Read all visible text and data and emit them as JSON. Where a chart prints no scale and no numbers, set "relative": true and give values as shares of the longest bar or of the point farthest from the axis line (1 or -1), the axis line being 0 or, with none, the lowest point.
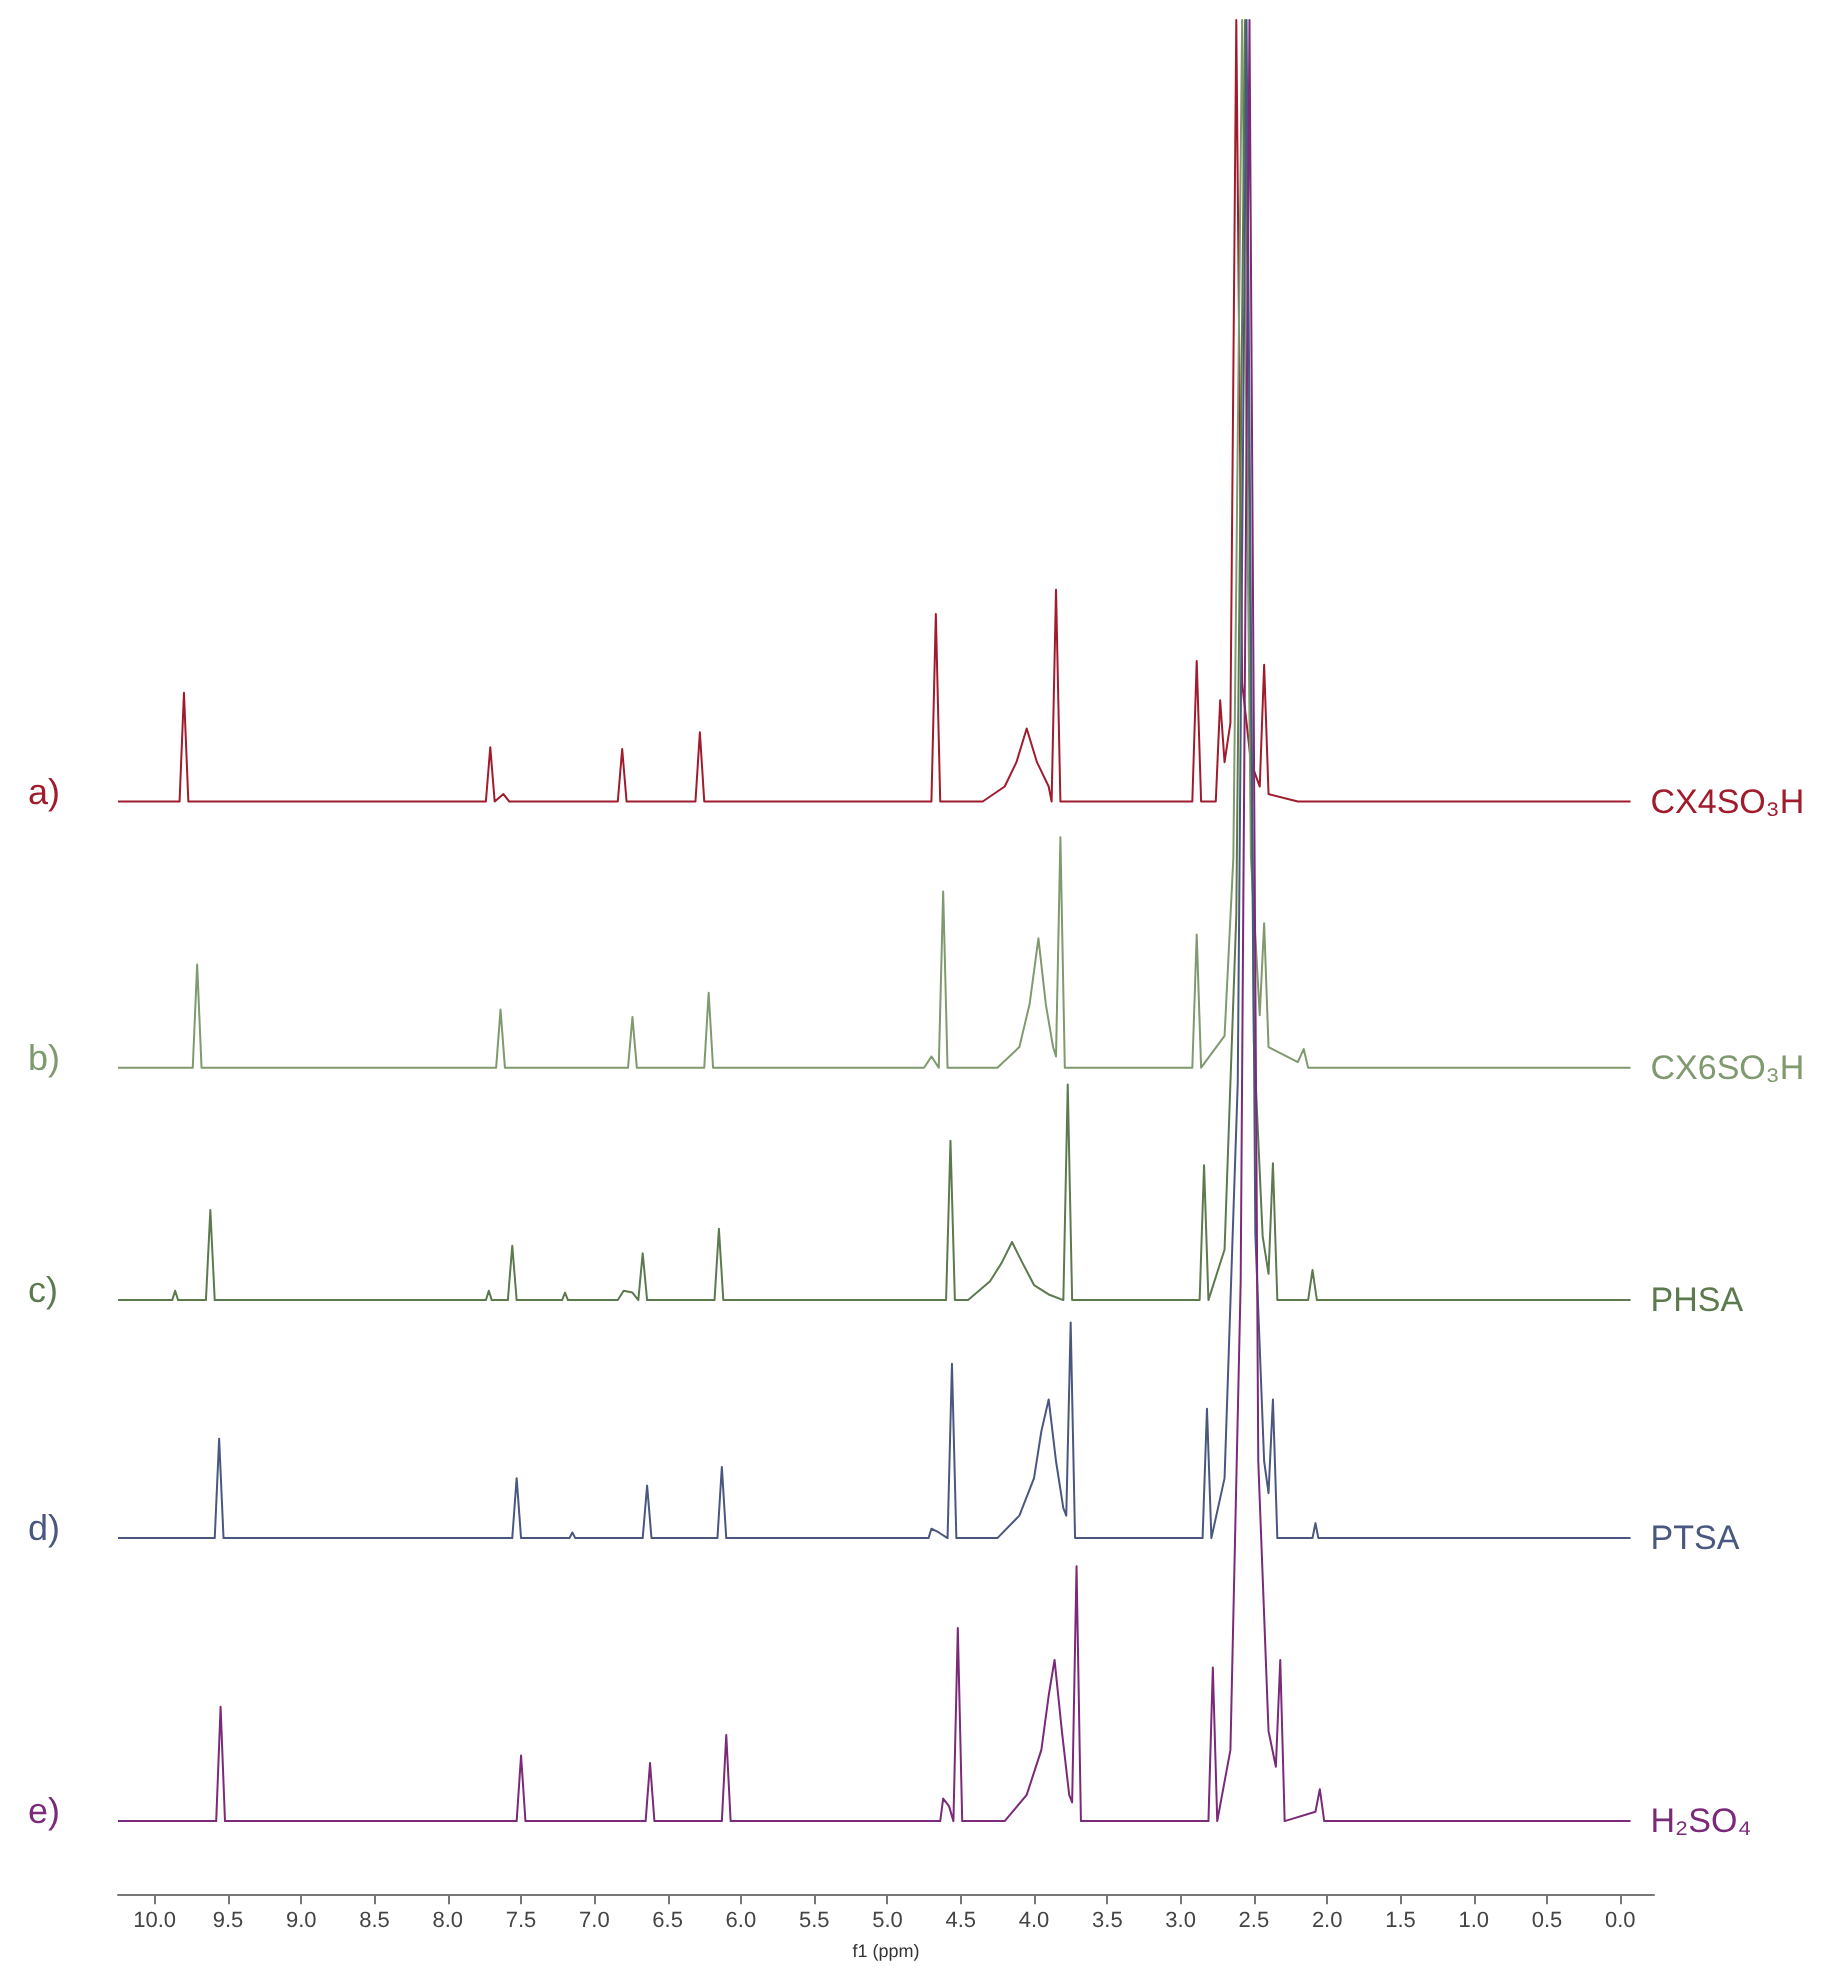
{
  "chart_data": {
    "type": "line",
    "relative": true,
    "tick_labels": "x",
    "xlabel": "f1 (ppm)",
    "xlim": [
      10.25,
      -0.23
    ],
    "xticks": [
      {
        "value": 10,
        "label": "10.0"
      },
      9.5,
      {
        "value": 9,
        "label": "9.0"
      },
      8.5,
      {
        "value": 8,
        "label": "8.0"
      },
      7.5,
      {
        "value": 7,
        "label": "7.0"
      },
      6.5,
      {
        "value": 6,
        "label": "6.0"
      },
      5.5,
      {
        "value": 5,
        "label": "5.0"
      },
      4.5,
      {
        "value": 4,
        "label": "4.0"
      },
      3.5,
      {
        "value": 3,
        "label": "3.0"
      },
      2.5,
      {
        "value": 2,
        "label": "2.0"
      },
      1.5,
      {
        "value": 1,
        "label": "1.0"
      },
      0.5,
      {
        "value": 0,
        "label": "0.0"
      }
    ],
    "annotations": [
      "a)",
      "b)",
      "c)",
      "d)",
      "e)"
    ],
    "series": [
      {
        "name": "CX4SO₃H",
        "color": "#a01c2c",
        "x": [
          10.25,
          9.83,
          9.8,
          9.77,
          7.74,
          7.71,
          7.68,
          7.62,
          7.58,
          6.84,
          6.81,
          6.78,
          6.31,
          6.28,
          6.25,
          4.7,
          4.67,
          4.64,
          4.35,
          4.2,
          4.12,
          4.05,
          3.98,
          3.9,
          3.88,
          3.85,
          3.82,
          3.0,
          2.92,
          2.89,
          2.86,
          2.76,
          2.73,
          2.7,
          2.66,
          2.62,
          2.58,
          2.52,
          2.46,
          2.43,
          2.4,
          2.2,
          -0.07
        ],
        "values": [
          0.583,
          0.583,
          0.641,
          0.583,
          0.583,
          0.612,
          0.583,
          0.587,
          0.583,
          0.583,
          0.611,
          0.583,
          0.583,
          0.62,
          0.583,
          0.583,
          0.683,
          0.583,
          0.583,
          0.591,
          0.604,
          0.622,
          0.604,
          0.591,
          0.583,
          0.696,
          0.583,
          0.583,
          0.583,
          0.658,
          0.583,
          0.583,
          0.637,
          0.604,
          0.625,
          1,
          0.646,
          0.604,
          0.591,
          0.656,
          0.587,
          0.583,
          0.583
        ]
      },
      {
        "name": "CX6SO₃H",
        "color": "#7f9a6e",
        "x": [
          10.25,
          9.74,
          9.71,
          9.68,
          7.67,
          7.64,
          7.61,
          6.77,
          6.74,
          6.71,
          6.25,
          6.22,
          6.19,
          4.75,
          4.7,
          4.65,
          4.62,
          4.59,
          4.25,
          4.1,
          4.03,
          3.97,
          3.92,
          3.87,
          3.85,
          3.82,
          3.79,
          2.95,
          2.92,
          2.89,
          2.86,
          2.7,
          2.64,
          2.58,
          2.52,
          2.46,
          2.43,
          2.4,
          2.2,
          2.16,
          2.13,
          -0.07
        ],
        "values": [
          0.441,
          0.441,
          0.496,
          0.441,
          0.441,
          0.472,
          0.441,
          0.441,
          0.468,
          0.441,
          0.441,
          0.481,
          0.441,
          0.441,
          0.447,
          0.441,
          0.535,
          0.441,
          0.441,
          0.452,
          0.475,
          0.51,
          0.475,
          0.452,
          0.447,
          0.564,
          0.441,
          0.441,
          0.441,
          0.512,
          0.441,
          0.458,
          0.553,
          1,
          0.553,
          0.469,
          0.518,
          0.452,
          0.444,
          0.451,
          0.441,
          0.441
        ]
      },
      {
        "name": "PHSA",
        "color": "#5c7a4e",
        "x": [
          10.25,
          9.88,
          9.86,
          9.84,
          9.65,
          9.62,
          9.59,
          7.74,
          7.72,
          7.7,
          7.59,
          7.56,
          7.53,
          7.22,
          7.2,
          7.18,
          6.84,
          6.8,
          6.74,
          6.7,
          6.67,
          6.64,
          6.18,
          6.15,
          6.12,
          4.6,
          4.57,
          4.54,
          4.45,
          4.3,
          4.22,
          4.15,
          4.08,
          4.0,
          3.9,
          3.8,
          3.77,
          3.74,
          2.9,
          2.87,
          2.84,
          2.81,
          2.7,
          2.62,
          2.56,
          2.5,
          2.44,
          2.4,
          2.37,
          2.34,
          2.13,
          2.1,
          2.07,
          -0.07
        ],
        "values": [
          0.317,
          0.317,
          0.322,
          0.317,
          0.317,
          0.365,
          0.317,
          0.317,
          0.322,
          0.317,
          0.317,
          0.346,
          0.317,
          0.317,
          0.321,
          0.317,
          0.317,
          0.322,
          0.321,
          0.317,
          0.342,
          0.317,
          0.317,
          0.355,
          0.317,
          0.317,
          0.402,
          0.317,
          0.317,
          0.327,
          0.337,
          0.348,
          0.337,
          0.325,
          0.32,
          0.317,
          0.432,
          0.317,
          0.317,
          0.317,
          0.389,
          0.317,
          0.344,
          0.522,
          1,
          0.454,
          0.351,
          0.331,
          0.39,
          0.317,
          0.317,
          0.333,
          0.317,
          0.317
        ]
      },
      {
        "name": "PTSA",
        "color": "#4a5880",
        "x": [
          10.25,
          9.59,
          9.56,
          9.53,
          7.56,
          7.53,
          7.5,
          7.17,
          7.15,
          7.13,
          6.67,
          6.64,
          6.61,
          6.16,
          6.13,
          6.1,
          4.72,
          4.7,
          4.65,
          4.59,
          4.56,
          4.53,
          4.25,
          4.1,
          4.0,
          3.95,
          3.9,
          3.85,
          3.8,
          3.78,
          3.75,
          3.72,
          2.85,
          2.82,
          2.79,
          2.7,
          2.61,
          2.55,
          2.49,
          2.43,
          2.4,
          2.37,
          2.34,
          2.1,
          2.08,
          2.06,
          -0.07
        ],
        "values": [
          0.19,
          0.19,
          0.243,
          0.19,
          0.19,
          0.222,
          0.19,
          0.19,
          0.193,
          0.19,
          0.19,
          0.218,
          0.19,
          0.19,
          0.228,
          0.19,
          0.19,
          0.195,
          0.193,
          0.19,
          0.283,
          0.19,
          0.19,
          0.202,
          0.222,
          0.247,
          0.264,
          0.231,
          0.206,
          0.202,
          0.305,
          0.19,
          0.19,
          0.259,
          0.19,
          0.222,
          0.433,
          1,
          0.352,
          0.231,
          0.214,
          0.264,
          0.19,
          0.19,
          0.198,
          0.19,
          0.19
        ]
      },
      {
        "name": "H₂SO₄",
        "color": "#7a2a78",
        "x": [
          10.25,
          9.58,
          9.55,
          9.52,
          7.53,
          7.5,
          7.47,
          6.65,
          6.62,
          6.59,
          6.13,
          6.1,
          6.07,
          4.64,
          4.62,
          4.58,
          4.55,
          4.52,
          4.49,
          4.2,
          4.05,
          3.95,
          3.9,
          3.86,
          3.81,
          3.76,
          3.74,
          3.71,
          3.68,
          2.81,
          2.78,
          2.75,
          2.66,
          2.59,
          2.53,
          2.47,
          2.4,
          2.35,
          2.32,
          2.29,
          2.08,
          2.05,
          2.02,
          -0.07
        ],
        "values": [
          0.039,
          0.039,
          0.1,
          0.039,
          0.039,
          0.074,
          0.039,
          0.039,
          0.07,
          0.039,
          0.039,
          0.085,
          0.039,
          0.039,
          0.051,
          0.047,
          0.039,
          0.142,
          0.039,
          0.039,
          0.053,
          0.077,
          0.106,
          0.125,
          0.087,
          0.053,
          0.049,
          0.175,
          0.039,
          0.039,
          0.121,
          0.039,
          0.077,
          0.327,
          1,
          0.231,
          0.087,
          0.068,
          0.125,
          0.039,
          0.044,
          0.056,
          0.039,
          0.039
        ]
      }
    ]
  }
}
